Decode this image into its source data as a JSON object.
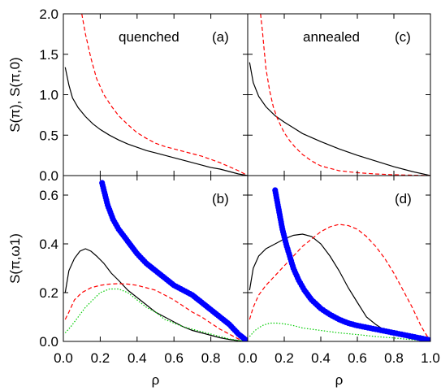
{
  "chart_data": [
    {
      "panel": "(a)",
      "type": "line",
      "annotation": "quenched",
      "ylabel": "S(π), S(π,0)",
      "xlim": [
        0,
        1
      ],
      "ylim": [
        0,
        2
      ],
      "yticks": [
        "0.0",
        "0.5",
        "1.0",
        "1.5",
        "2.0"
      ],
      "series": [
        {
          "style": "solid",
          "color": "#000000",
          "x": [
            0.01,
            0.03,
            0.05,
            0.08,
            0.12,
            0.16,
            0.2,
            0.25,
            0.3,
            0.35,
            0.4,
            0.45,
            0.5,
            0.55,
            0.6,
            0.65,
            0.7,
            0.75,
            0.8,
            0.85,
            0.9,
            0.95,
            1.0
          ],
          "y": [
            1.34,
            1.12,
            0.96,
            0.84,
            0.73,
            0.64,
            0.57,
            0.5,
            0.44,
            0.39,
            0.35,
            0.31,
            0.28,
            0.25,
            0.22,
            0.19,
            0.16,
            0.13,
            0.1,
            0.08,
            0.05,
            0.02,
            0.0
          ]
        },
        {
          "style": "dashed",
          "color": "#ff0000",
          "x": [
            0.1,
            0.12,
            0.15,
            0.18,
            0.22,
            0.26,
            0.3,
            0.35,
            0.4,
            0.45,
            0.5,
            0.55,
            0.6,
            0.65,
            0.7,
            0.75,
            0.8,
            0.85,
            0.9,
            0.95,
            1.0
          ],
          "y": [
            2.0,
            1.75,
            1.45,
            1.2,
            1.0,
            0.86,
            0.74,
            0.63,
            0.53,
            0.46,
            0.4,
            0.36,
            0.33,
            0.3,
            0.27,
            0.24,
            0.2,
            0.16,
            0.11,
            0.06,
            0.0
          ]
        }
      ]
    },
    {
      "panel": "(b)",
      "type": "line",
      "ylabel": "S(π,ω1)",
      "xlabel": "ρ",
      "xlim": [
        0,
        1
      ],
      "ylim": [
        0,
        0.68
      ],
      "xticks": [
        "0.0",
        "0.2",
        "0.4",
        "0.6",
        "0.8"
      ],
      "yticks": [
        "0.0",
        "0.2",
        "0.4",
        "0.6"
      ],
      "series": [
        {
          "style": "solid",
          "color": "#000000",
          "x": [
            0.01,
            0.03,
            0.06,
            0.09,
            0.12,
            0.15,
            0.18,
            0.22,
            0.26,
            0.3,
            0.35,
            0.4,
            0.45,
            0.5,
            0.55,
            0.6,
            0.65,
            0.7,
            0.75,
            0.8,
            0.85,
            0.9,
            0.95,
            1.0
          ],
          "y": [
            0.2,
            0.29,
            0.34,
            0.37,
            0.38,
            0.37,
            0.35,
            0.32,
            0.28,
            0.25,
            0.21,
            0.18,
            0.15,
            0.12,
            0.1,
            0.08,
            0.06,
            0.045,
            0.035,
            0.025,
            0.015,
            0.008,
            0.003,
            0.0
          ]
        },
        {
          "style": "dashed",
          "color": "#ff0000",
          "x": [
            0.01,
            0.03,
            0.06,
            0.1,
            0.15,
            0.2,
            0.25,
            0.3,
            0.35,
            0.4,
            0.45,
            0.5,
            0.55,
            0.6,
            0.65,
            0.7,
            0.75,
            0.8,
            0.85,
            0.9,
            0.95,
            1.0
          ],
          "y": [
            0.09,
            0.12,
            0.17,
            0.2,
            0.22,
            0.23,
            0.235,
            0.237,
            0.235,
            0.23,
            0.22,
            0.21,
            0.19,
            0.17,
            0.145,
            0.12,
            0.1,
            0.075,
            0.05,
            0.03,
            0.01,
            0.0
          ]
        },
        {
          "style": "dotted",
          "color": "#00cc00",
          "x": [
            0.01,
            0.04,
            0.08,
            0.12,
            0.16,
            0.2,
            0.25,
            0.3,
            0.35,
            0.4,
            0.45,
            0.5,
            0.55,
            0.6,
            0.65,
            0.7,
            0.75,
            0.8,
            0.85,
            0.9,
            0.95,
            1.0
          ],
          "y": [
            0.035,
            0.06,
            0.1,
            0.14,
            0.17,
            0.2,
            0.215,
            0.215,
            0.2,
            0.17,
            0.14,
            0.12,
            0.09,
            0.075,
            0.06,
            0.05,
            0.04,
            0.03,
            0.02,
            0.01,
            0.004,
            0.0
          ]
        },
        {
          "style": "markers",
          "color": "#0000ff",
          "x": [
            0.21,
            0.24,
            0.27,
            0.3,
            0.35,
            0.4,
            0.45,
            0.5,
            0.55,
            0.6,
            0.65,
            0.7,
            0.75,
            0.8,
            0.85,
            0.9,
            0.95,
            1.0
          ],
          "y": [
            0.65,
            0.56,
            0.5,
            0.46,
            0.41,
            0.36,
            0.32,
            0.29,
            0.26,
            0.23,
            0.21,
            0.19,
            0.16,
            0.13,
            0.1,
            0.07,
            0.03,
            0.0
          ]
        }
      ]
    },
    {
      "panel": "(c)",
      "type": "line",
      "annotation": "annealed",
      "xlim": [
        0,
        1
      ],
      "ylim": [
        0,
        2
      ],
      "series": [
        {
          "style": "solid",
          "color": "#000000",
          "x": [
            0.01,
            0.03,
            0.06,
            0.1,
            0.15,
            0.2,
            0.25,
            0.3,
            0.4,
            0.5,
            0.6,
            0.7,
            0.8,
            0.9,
            1.0
          ],
          "y": [
            1.4,
            1.15,
            0.98,
            0.85,
            0.74,
            0.66,
            0.59,
            0.52,
            0.42,
            0.33,
            0.25,
            0.18,
            0.11,
            0.05,
            0.0
          ]
        },
        {
          "style": "dashed",
          "color": "#ff0000",
          "x": [
            0.07,
            0.08,
            0.09,
            0.1,
            0.12,
            0.14,
            0.16,
            0.18,
            0.2,
            0.23,
            0.26,
            0.3,
            0.35,
            0.4,
            0.5,
            0.6,
            0.7,
            0.8,
            0.9,
            1.0
          ],
          "y": [
            2.0,
            1.8,
            1.55,
            1.32,
            1.05,
            0.85,
            0.72,
            0.62,
            0.53,
            0.43,
            0.35,
            0.26,
            0.18,
            0.12,
            0.06,
            0.035,
            0.02,
            0.01,
            0.005,
            0.0
          ]
        }
      ]
    },
    {
      "panel": "(d)",
      "type": "line",
      "xlabel": "ρ",
      "xlim": [
        0,
        1
      ],
      "ylim": [
        0,
        0.68
      ],
      "xticks": [
        "0.0",
        "0.2",
        "0.4",
        "0.6",
        "0.8",
        "1.0"
      ],
      "series": [
        {
          "style": "solid",
          "color": "#000000",
          "x": [
            0.01,
            0.03,
            0.06,
            0.1,
            0.15,
            0.2,
            0.25,
            0.3,
            0.35,
            0.4,
            0.45,
            0.5,
            0.55,
            0.6,
            0.65,
            0.7,
            0.75,
            0.8,
            0.85,
            0.9,
            0.95,
            1.0
          ],
          "y": [
            0.21,
            0.3,
            0.35,
            0.38,
            0.4,
            0.42,
            0.435,
            0.44,
            0.43,
            0.4,
            0.35,
            0.29,
            0.22,
            0.16,
            0.1,
            0.07,
            0.045,
            0.03,
            0.02,
            0.01,
            0.005,
            0.0
          ]
        },
        {
          "style": "dashed",
          "color": "#ff0000",
          "x": [
            0.01,
            0.03,
            0.06,
            0.1,
            0.15,
            0.2,
            0.25,
            0.3,
            0.35,
            0.4,
            0.45,
            0.5,
            0.55,
            0.6,
            0.65,
            0.7,
            0.75,
            0.8,
            0.85,
            0.9,
            0.95,
            1.0
          ],
          "y": [
            0.09,
            0.14,
            0.19,
            0.23,
            0.27,
            0.31,
            0.35,
            0.39,
            0.42,
            0.45,
            0.47,
            0.48,
            0.475,
            0.46,
            0.43,
            0.39,
            0.34,
            0.28,
            0.21,
            0.14,
            0.06,
            0.0
          ]
        },
        {
          "style": "dotted",
          "color": "#00cc00",
          "x": [
            0.01,
            0.04,
            0.08,
            0.12,
            0.16,
            0.2,
            0.25,
            0.3,
            0.4,
            0.5,
            0.6,
            0.7,
            0.8,
            0.9,
            1.0
          ],
          "y": [
            0.02,
            0.045,
            0.065,
            0.075,
            0.075,
            0.072,
            0.065,
            0.055,
            0.045,
            0.035,
            0.028,
            0.02,
            0.014,
            0.007,
            0.0
          ]
        },
        {
          "style": "markers",
          "color": "#0000ff",
          "x": [
            0.15,
            0.17,
            0.19,
            0.21,
            0.23,
            0.25,
            0.28,
            0.31,
            0.35,
            0.4,
            0.45,
            0.5,
            0.55,
            0.6,
            0.7,
            0.8,
            0.9,
            1.0
          ],
          "y": [
            0.62,
            0.54,
            0.46,
            0.4,
            0.35,
            0.3,
            0.25,
            0.21,
            0.17,
            0.135,
            0.11,
            0.09,
            0.075,
            0.065,
            0.05,
            0.035,
            0.02,
            0.005
          ]
        }
      ]
    }
  ]
}
